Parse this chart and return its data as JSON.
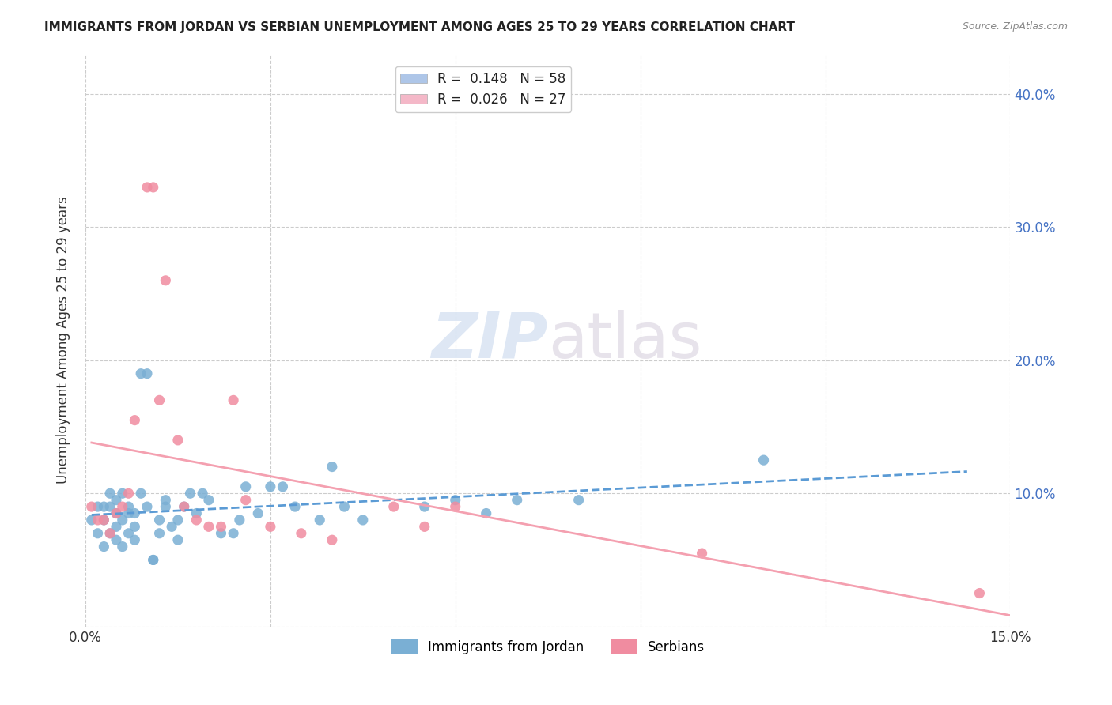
{
  "title": "IMMIGRANTS FROM JORDAN VS SERBIAN UNEMPLOYMENT AMONG AGES 25 TO 29 YEARS CORRELATION CHART",
  "source": "Source: ZipAtlas.com",
  "ylabel": "Unemployment Among Ages 25 to 29 years",
  "xlim": [
    0.0,
    0.15
  ],
  "ylim": [
    0.0,
    0.43
  ],
  "legend_entry1": "R =  0.148   N = 58",
  "legend_entry2": "R =  0.026   N = 27",
  "legend_color1": "#aec6e8",
  "legend_color2": "#f4b8c8",
  "scatter_color1": "#7aafd4",
  "scatter_color2": "#f08ca0",
  "line_color1": "#5b9bd5",
  "line_color2": "#f4a0b0",
  "watermark_zip": "ZIP",
  "watermark_atlas": "atlas",
  "jordan_x": [
    0.001,
    0.002,
    0.002,
    0.003,
    0.003,
    0.003,
    0.004,
    0.004,
    0.004,
    0.005,
    0.005,
    0.005,
    0.005,
    0.006,
    0.006,
    0.006,
    0.007,
    0.007,
    0.007,
    0.008,
    0.008,
    0.008,
    0.009,
    0.009,
    0.01,
    0.01,
    0.011,
    0.011,
    0.012,
    0.012,
    0.013,
    0.013,
    0.014,
    0.015,
    0.015,
    0.016,
    0.017,
    0.018,
    0.019,
    0.02,
    0.022,
    0.024,
    0.025,
    0.026,
    0.028,
    0.03,
    0.032,
    0.034,
    0.038,
    0.04,
    0.042,
    0.045,
    0.055,
    0.06,
    0.065,
    0.07,
    0.08,
    0.11
  ],
  "jordan_y": [
    0.08,
    0.07,
    0.09,
    0.06,
    0.08,
    0.09,
    0.07,
    0.09,
    0.1,
    0.065,
    0.075,
    0.085,
    0.095,
    0.06,
    0.08,
    0.1,
    0.07,
    0.085,
    0.09,
    0.065,
    0.075,
    0.085,
    0.19,
    0.1,
    0.19,
    0.09,
    0.05,
    0.05,
    0.07,
    0.08,
    0.09,
    0.095,
    0.075,
    0.065,
    0.08,
    0.09,
    0.1,
    0.085,
    0.1,
    0.095,
    0.07,
    0.07,
    0.08,
    0.105,
    0.085,
    0.105,
    0.105,
    0.09,
    0.08,
    0.12,
    0.09,
    0.08,
    0.09,
    0.095,
    0.085,
    0.095,
    0.095,
    0.125
  ],
  "serbia_x": [
    0.001,
    0.002,
    0.003,
    0.004,
    0.005,
    0.006,
    0.007,
    0.008,
    0.01,
    0.011,
    0.012,
    0.013,
    0.015,
    0.016,
    0.018,
    0.02,
    0.022,
    0.024,
    0.026,
    0.03,
    0.035,
    0.04,
    0.05,
    0.055,
    0.06,
    0.1,
    0.145
  ],
  "serbia_y": [
    0.09,
    0.08,
    0.08,
    0.07,
    0.085,
    0.09,
    0.1,
    0.155,
    0.33,
    0.33,
    0.17,
    0.26,
    0.14,
    0.09,
    0.08,
    0.075,
    0.075,
    0.17,
    0.095,
    0.075,
    0.07,
    0.065,
    0.09,
    0.075,
    0.09,
    0.055,
    0.025
  ]
}
